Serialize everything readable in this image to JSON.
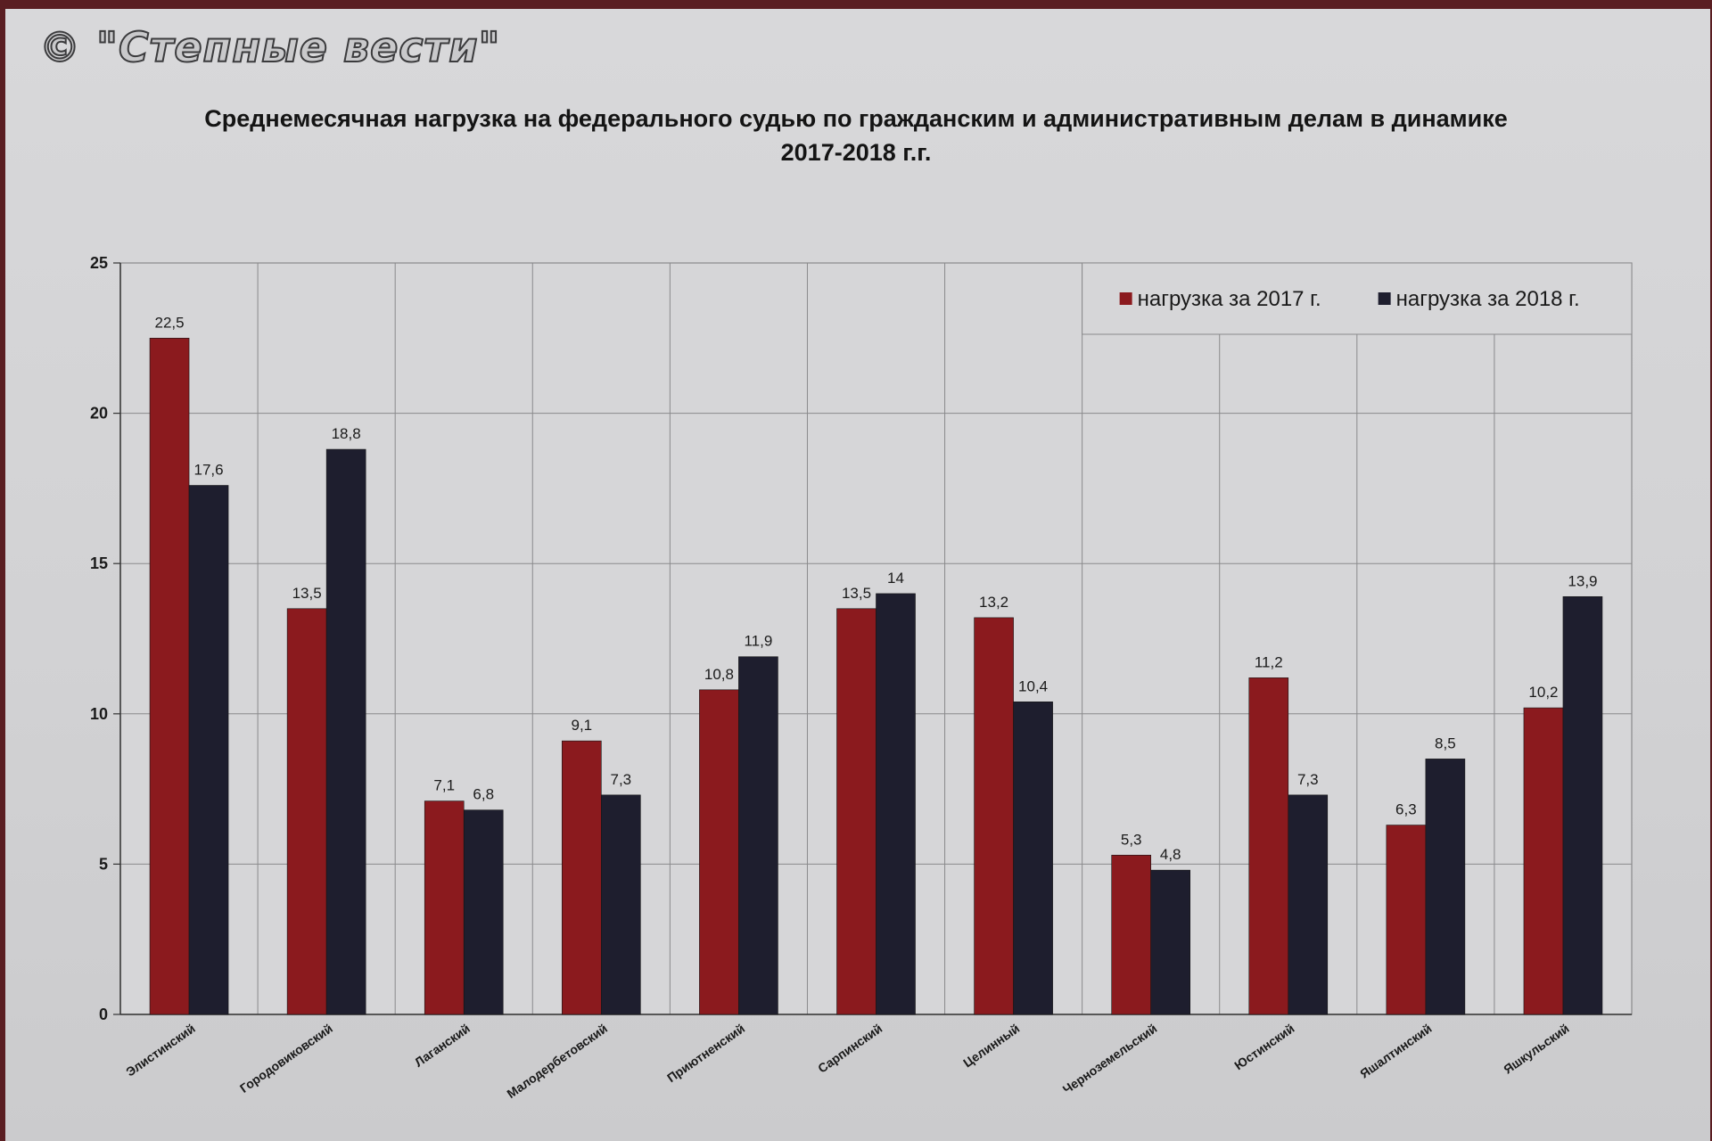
{
  "watermark": "© \"Степные вести\"",
  "colors": {
    "series_2017": "#8b1a1e",
    "series_2018": "#1e1e2e",
    "grid": "#8a8a8c"
  },
  "chart_data": {
    "type": "bar",
    "title_line1": "Среднемесячная нагрузка на федерального судью по гражданским  и административным делам в динамике",
    "title_line2": "2017-2018 г.г.",
    "categories": [
      "Элистинский",
      "Городовиковский",
      "Лаганский",
      "Малодербетовский",
      "Приютненский",
      "Сарпинский",
      "Целинный",
      "Черноземельский",
      "Юстинский",
      "Яшалтинский",
      "Яшкульский"
    ],
    "series": [
      {
        "name": "нагрузка за 2017 г.",
        "values": [
          22.5,
          13.5,
          7.1,
          9.1,
          10.8,
          13.5,
          13.2,
          5.3,
          11.2,
          6.3,
          10.2
        ],
        "labels": [
          "22,5",
          "13,5",
          "7,1",
          "9,1",
          "10,8",
          "13,5",
          "13,2",
          "5,3",
          "11,2",
          "6,3",
          "10,2"
        ]
      },
      {
        "name": "нагрузка за 2018 г.",
        "values": [
          17.6,
          18.8,
          6.8,
          7.3,
          11.9,
          14,
          10.4,
          4.8,
          7.3,
          8.5,
          13.9
        ],
        "labels": [
          "17,6",
          "18,8",
          "6,8",
          "7,3",
          "11,9",
          "14",
          "10,4",
          "4,8",
          "7,3",
          "8,5",
          "13,9"
        ]
      }
    ],
    "ylim": [
      0,
      25
    ],
    "yticks": [
      0,
      5,
      10,
      15,
      20,
      25
    ],
    "grid": true,
    "legend_position": "top-right"
  }
}
